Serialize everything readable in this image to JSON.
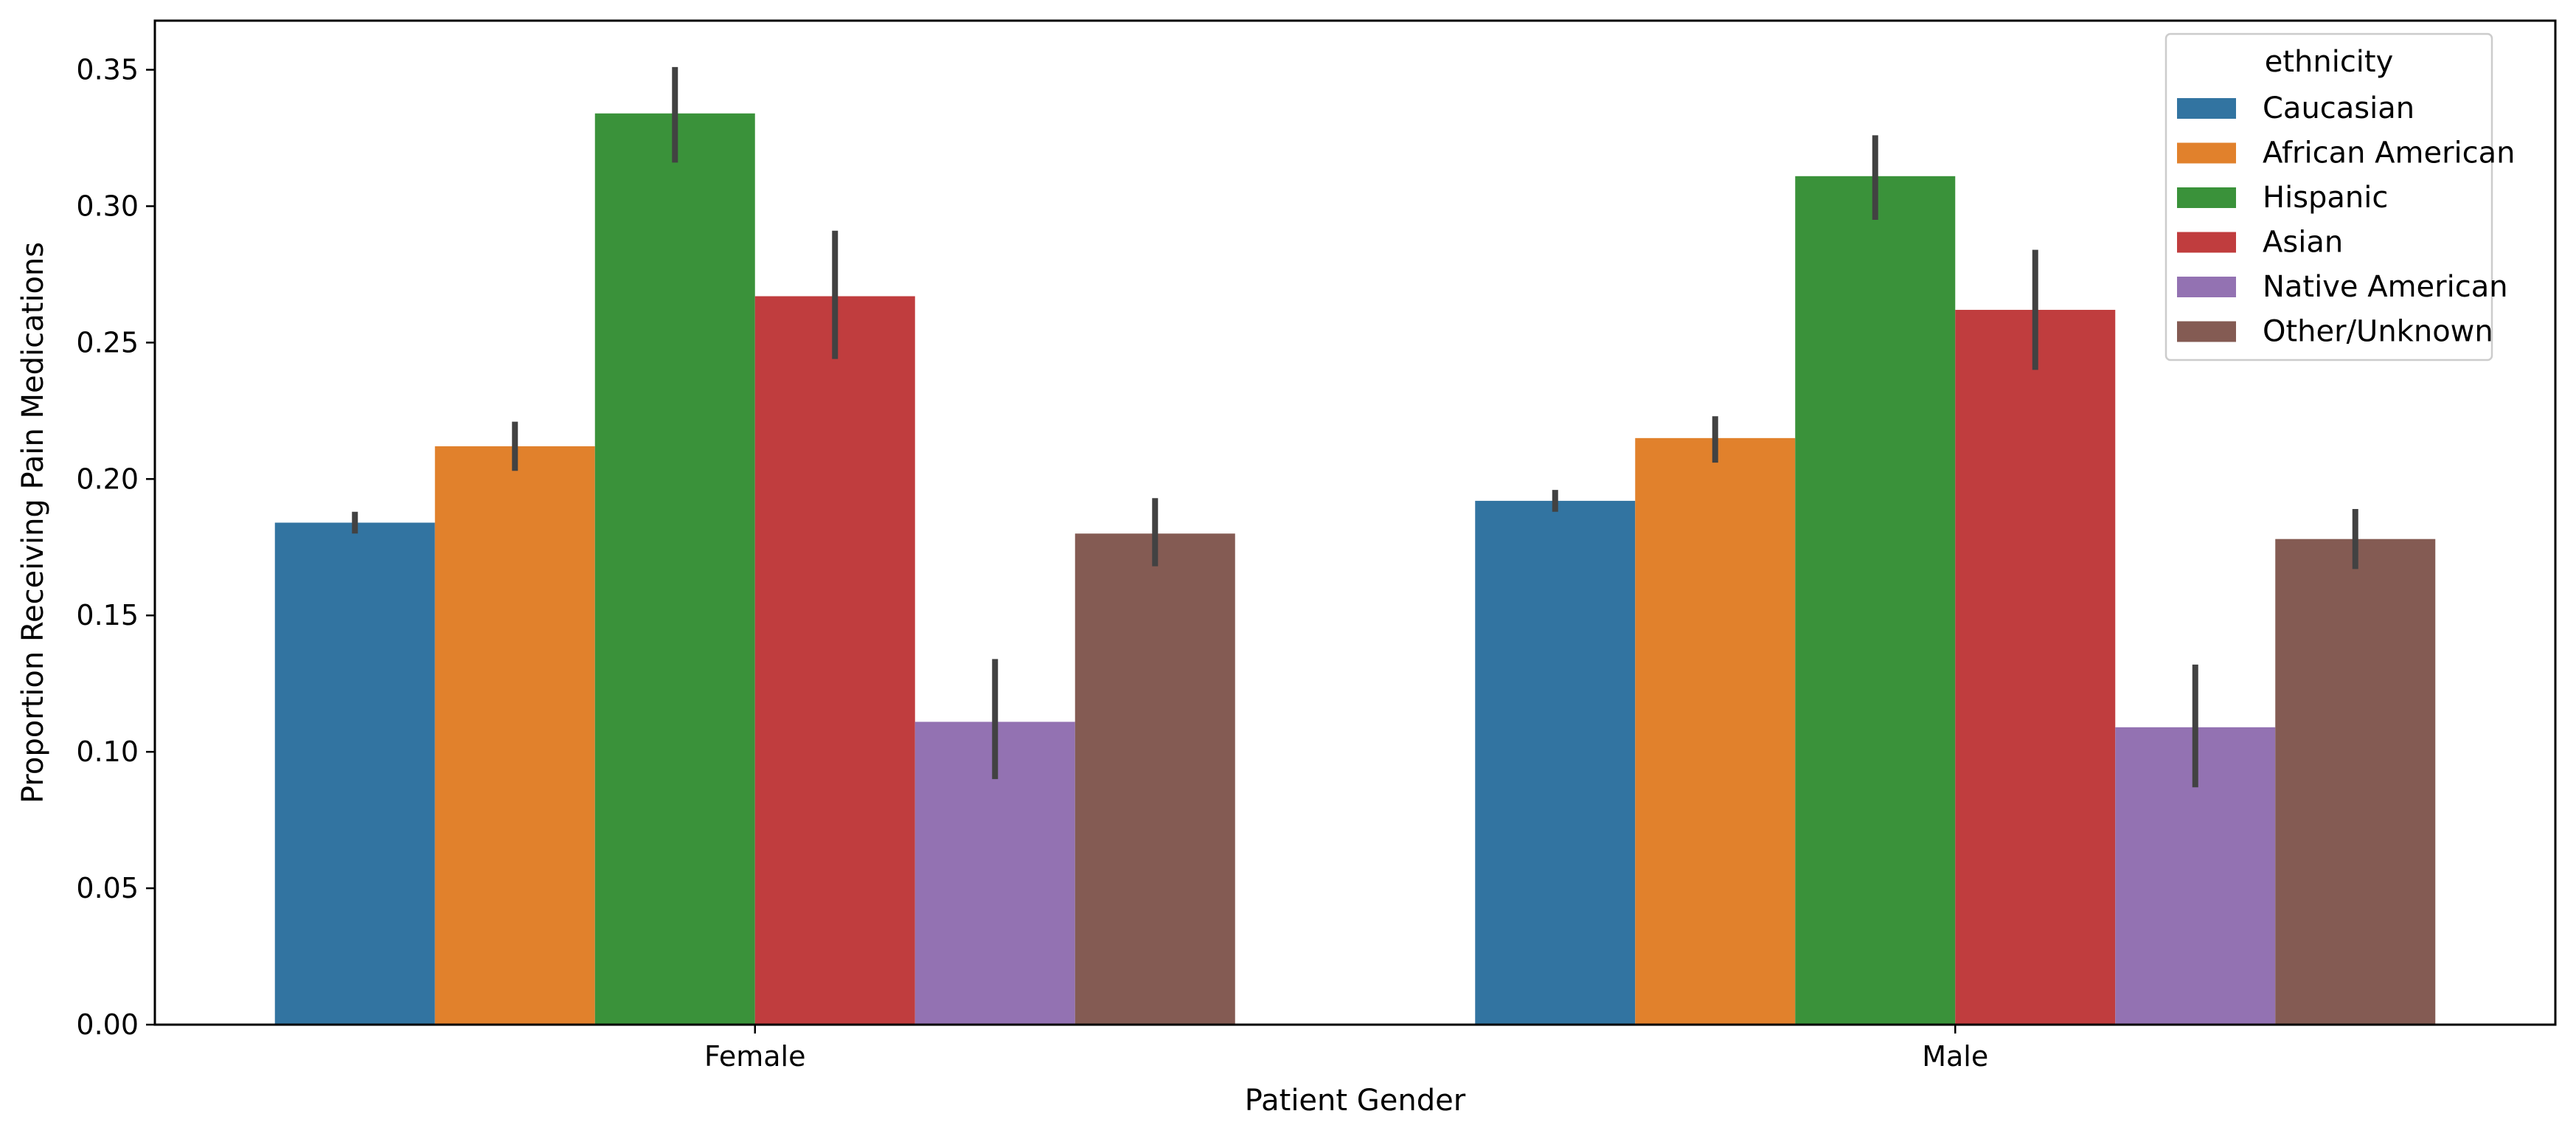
{
  "chart_data": {
    "type": "bar",
    "xlabel": "Patient Gender",
    "ylabel": "Proportion Receiving Pain Medications",
    "categories": [
      "Female",
      "Male"
    ],
    "ylim": [
      0,
      0.368
    ],
    "yticks": [
      0.0,
      0.05,
      0.1,
      0.15,
      0.2,
      0.25,
      0.3,
      0.35
    ],
    "ytick_labels": [
      "0.00",
      "0.05",
      "0.10",
      "0.15",
      "0.20",
      "0.25",
      "0.30",
      "0.35"
    ],
    "grid": false,
    "legend": {
      "title": "ethnicity",
      "position": "upper-right"
    },
    "series": [
      {
        "name": "Caucasian",
        "color": "#3274a1",
        "values": [
          0.184,
          0.192
        ],
        "err_low": [
          0.18,
          0.188
        ],
        "err_high": [
          0.188,
          0.196
        ]
      },
      {
        "name": "African American",
        "color": "#e1812c",
        "values": [
          0.212,
          0.215
        ],
        "err_low": [
          0.203,
          0.206
        ],
        "err_high": [
          0.221,
          0.223
        ]
      },
      {
        "name": "Hispanic",
        "color": "#3a923a",
        "values": [
          0.334,
          0.311
        ],
        "err_low": [
          0.316,
          0.295
        ],
        "err_high": [
          0.351,
          0.326
        ]
      },
      {
        "name": "Asian",
        "color": "#c03d3e",
        "values": [
          0.267,
          0.262
        ],
        "err_low": [
          0.244,
          0.24
        ],
        "err_high": [
          0.291,
          0.284
        ]
      },
      {
        "name": "Native American",
        "color": "#9372b2",
        "values": [
          0.111,
          0.109
        ],
        "err_low": [
          0.09,
          0.087
        ],
        "err_high": [
          0.134,
          0.132
        ]
      },
      {
        "name": "Other/Unknown",
        "color": "#845b53",
        "values": [
          0.18,
          0.178
        ],
        "err_low": [
          0.168,
          0.167
        ],
        "err_high": [
          0.193,
          0.189
        ]
      }
    ]
  }
}
